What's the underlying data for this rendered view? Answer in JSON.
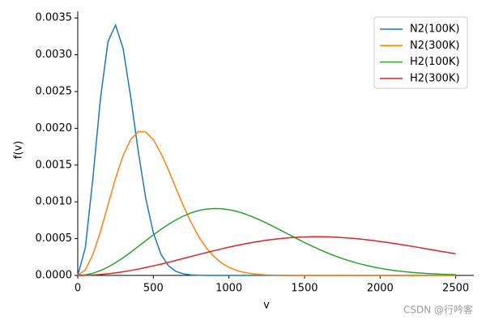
{
  "chart_data": {
    "type": "line",
    "x": [
      0,
      50,
      100,
      150,
      200,
      250,
      300,
      350,
      400,
      450,
      500,
      550,
      600,
      650,
      700,
      750,
      800,
      850,
      900,
      950,
      1000,
      1050,
      1100,
      1150,
      1200,
      1250,
      1300,
      1350,
      1400,
      1450,
      1500,
      1550,
      1600,
      1650,
      1700,
      1750,
      1800,
      1850,
      1900,
      1950,
      2000,
      2050,
      2100,
      2150,
      2200,
      2250,
      2300,
      2350,
      2400,
      2450,
      2500
    ],
    "series": [
      {
        "name": "N2(100K)",
        "color": "#1f77b4",
        "values": [
          0,
          0.000374,
          0.001318,
          0.002402,
          0.00318,
          0.003403,
          0.003084,
          0.002428,
          0.001687,
          0.001044,
          0.000579,
          0.000289,
          0.000131,
          5.36e-05,
          2e-05,
          6.8e-06,
          2.1e-06,
          6e-07,
          2e-07,
          0,
          0,
          0,
          0,
          0,
          0,
          0,
          0,
          0,
          0,
          0,
          0,
          0,
          0,
          0,
          0,
          0,
          0,
          0,
          0,
          0,
          0,
          0,
          0,
          0,
          0,
          0,
          0,
          0,
          0,
          0,
          0
        ]
      },
      {
        "name": "N2(300K)",
        "color": "#ff7f0e",
        "values": [
          0,
          7.4e-05,
          0.000284,
          0.000595,
          0.000959,
          0.001321,
          0.00163,
          0.001848,
          0.001956,
          0.00195,
          0.001844,
          0.001662,
          0.001432,
          0.001183,
          0.000939,
          0.000718,
          0.000528,
          0.000375,
          0.000257,
          0.000171,
          0.000109,
          6.78e-05,
          4.07e-05,
          2.36e-05,
          1.33e-05,
          7.3e-06,
          3.9e-06,
          2e-06,
          1e-06,
          5e-07,
          2e-07,
          0,
          0,
          0,
          0,
          0,
          0,
          0,
          0,
          0,
          0,
          0,
          0,
          0,
          0,
          0,
          0,
          0,
          0,
          0,
          0
        ]
      },
      {
        "name": "H2(100K)",
        "color": "#2ca02c",
        "values": [
          0,
          7.4e-06,
          2.94e-05,
          6.51e-05,
          0.000113,
          0.000172,
          0.00024,
          0.000314,
          0.000393,
          0.000472,
          0.000551,
          0.000625,
          0.000694,
          0.000756,
          0.000808,
          0.000851,
          0.000882,
          0.000901,
          0.000909,
          0.000907,
          0.000894,
          0.000871,
          0.00084,
          0.000802,
          0.000758,
          0.00071,
          0.000659,
          0.000606,
          0.000552,
          0.000499,
          0.000447,
          0.000398,
          0.000351,
          0.000307,
          0.000266,
          0.000229,
          0.000196,
          0.000166,
          0.00014,
          0.000117,
          9.7e-05,
          7.99e-05,
          6.53e-05,
          5.3e-05,
          4.28e-05,
          3.42e-05,
          2.72e-05,
          2.15e-05,
          1.68e-05,
          1.31e-05,
          1.01e-05
        ]
      },
      {
        "name": "H2(300K)",
        "color": "#d62728",
        "values": [
          0,
          1.4e-06,
          5.7e-06,
          1.28e-05,
          2.25e-05,
          3.49e-05,
          4.97e-05,
          6.68e-05,
          8.59e-05,
          0.000107,
          0.00013,
          0.000153,
          0.000178,
          0.000204,
          0.000231,
          0.000257,
          0.000284,
          0.00031,
          0.000335,
          0.00036,
          0.000384,
          0.000406,
          0.000427,
          0.000446,
          0.000463,
          0.000479,
          0.000492,
          0.000503,
          0.000512,
          0.000519,
          0.000523,
          0.000526,
          0.000526,
          0.000524,
          0.00052,
          0.000514,
          0.000507,
          0.000498,
          0.000487,
          0.000475,
          0.000461,
          0.000447,
          0.000432,
          0.000416,
          0.000399,
          0.000382,
          0.000364,
          0.000346,
          0.000328,
          0.000311,
          0.000293
        ]
      }
    ],
    "x_label": "v",
    "y_label": "f(v)",
    "xlim": [
      0,
      2620
    ],
    "ylim": [
      0,
      0.00359
    ],
    "xticks": [
      0,
      500,
      1000,
      1500,
      2000,
      2500
    ],
    "yticks": [
      {
        "value": 0,
        "label": "0.0000"
      },
      {
        "value": 0.0005,
        "label": "0.0005"
      },
      {
        "value": 0.001,
        "label": "0.0010"
      },
      {
        "value": 0.0015,
        "label": "0.0015"
      },
      {
        "value": 0.002,
        "label": "0.0020"
      },
      {
        "value": 0.0025,
        "label": "0.0025"
      },
      {
        "value": 0.003,
        "label": "0.0030"
      },
      {
        "value": 0.0035,
        "label": "0.0035"
      }
    ],
    "legend": "upper right",
    "grid": false
  },
  "watermark": "CSDN @行吟客"
}
